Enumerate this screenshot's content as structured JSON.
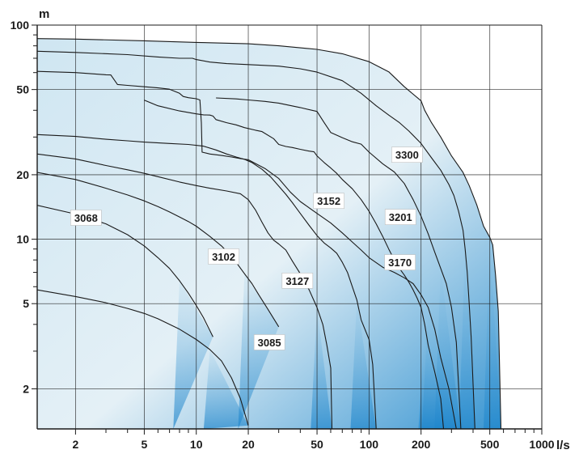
{
  "chart_data": {
    "type": "area",
    "title": "",
    "xlabel": "l/s",
    "ylabel": "m",
    "x_scale": "log",
    "y_scale": "log",
    "xlim": [
      1.2,
      1000
    ],
    "ylim": [
      1.3,
      100
    ],
    "grid": true,
    "legend": "none",
    "x_ticks": [
      {
        "value": 2,
        "label": "2"
      },
      {
        "value": 5,
        "label": "5"
      },
      {
        "value": 10,
        "label": "10"
      },
      {
        "value": 20,
        "label": "20"
      },
      {
        "value": 50,
        "label": "50"
      },
      {
        "value": 100,
        "label": "100"
      },
      {
        "value": 200,
        "label": "200"
      },
      {
        "value": 500,
        "label": "500"
      },
      {
        "value": 1000,
        "label": "1000"
      }
    ],
    "y_ticks": [
      {
        "value": 2,
        "label": "2"
      },
      {
        "value": 5,
        "label": "5"
      },
      {
        "value": 10,
        "label": "10"
      },
      {
        "value": 20,
        "label": "20"
      },
      {
        "value": 50,
        "label": "50"
      },
      {
        "value": 100,
        "label": "100"
      }
    ],
    "colors": {
      "fill_light": "#cfe6f2",
      "fill_dark": "#2e8fd0",
      "curve": "#1a1a1a",
      "grid": "#1a1a1a"
    },
    "series": [
      {
        "name": "3068",
        "label_at": [
          2.3,
          12.6
        ],
        "points": [
          [
            1.2,
            14.4
          ],
          [
            2,
            13.1
          ],
          [
            3,
            11.8
          ],
          [
            4,
            10.5
          ],
          [
            5,
            9.3
          ],
          [
            6,
            8.2
          ],
          [
            7,
            7.3
          ],
          [
            8,
            6.4
          ],
          [
            9,
            5.6
          ],
          [
            10,
            4.9
          ],
          [
            11,
            4.3
          ],
          [
            12.5,
            3.5
          ]
        ]
      },
      {
        "name": "3085",
        "label_at": [
          26.5,
          3.3
        ],
        "points": [
          [
            1.2,
            5.8
          ],
          [
            2,
            5.4
          ],
          [
            3,
            5.05
          ],
          [
            4,
            4.75
          ],
          [
            5,
            4.5
          ],
          [
            6,
            4.25
          ],
          [
            8,
            3.8
          ],
          [
            10,
            3.4
          ],
          [
            12,
            3.05
          ],
          [
            14,
            2.7
          ],
          [
            16,
            2.25
          ],
          [
            18,
            1.8
          ],
          [
            20,
            1.35
          ]
        ]
      },
      {
        "name": "3102",
        "label_at": [
          14.4,
          8.3
        ],
        "points": [
          [
            1.2,
            20.5
          ],
          [
            2,
            19
          ],
          [
            3,
            17.3
          ],
          [
            4,
            16.1
          ],
          [
            5,
            15.1
          ],
          [
            6,
            14.2
          ],
          [
            7,
            13.4
          ],
          [
            8,
            12.7
          ],
          [
            9,
            12.1
          ],
          [
            10,
            11.5
          ],
          [
            12,
            10.3
          ],
          [
            14,
            9.3
          ],
          [
            16,
            8.3
          ],
          [
            17,
            7.8
          ],
          [
            19,
            6.9
          ],
          [
            21,
            6.2
          ],
          [
            23,
            5.5
          ],
          [
            26,
            4.7
          ],
          [
            30,
            3.9
          ]
        ]
      },
      {
        "name": "3127",
        "label_at": [
          38.5,
          6.4
        ],
        "points": [
          [
            1.2,
            25
          ],
          [
            2,
            23.7
          ],
          [
            3,
            22.1
          ],
          [
            4,
            21.1
          ],
          [
            5,
            20.3
          ],
          [
            6,
            19.6
          ],
          [
            8,
            18.5
          ],
          [
            10,
            17.8
          ],
          [
            12,
            17.3
          ],
          [
            15,
            16.8
          ],
          [
            18,
            16.3
          ],
          [
            20,
            15.3
          ],
          [
            22,
            13.7
          ],
          [
            24,
            12
          ],
          [
            26,
            10.7
          ],
          [
            28,
            9.9
          ],
          [
            30,
            9.5
          ],
          [
            33,
            8.9
          ],
          [
            36,
            7.9
          ],
          [
            40,
            6.9
          ],
          [
            45,
            5.8
          ],
          [
            50,
            4.8
          ],
          [
            54,
            4.0
          ],
          [
            57,
            3.2
          ],
          [
            60,
            2.5
          ],
          [
            61,
            1.3
          ]
        ]
      },
      {
        "name": "3152",
        "label_at": [
          58.5,
          15.1
        ],
        "points": [
          [
            1.2,
            30.8
          ],
          [
            2,
            30.2
          ],
          [
            3,
            29.3
          ],
          [
            4,
            28.8
          ],
          [
            5,
            28.4
          ],
          [
            7,
            28
          ],
          [
            9,
            27.7
          ],
          [
            11,
            27.2
          ],
          [
            13,
            26.1
          ],
          [
            15,
            25
          ],
          [
            17,
            24.2
          ],
          [
            19,
            23.6
          ],
          [
            21,
            22.8
          ],
          [
            24,
            21.2
          ],
          [
            27,
            19.5
          ],
          [
            30,
            17.7
          ],
          [
            33,
            16.2
          ],
          [
            36,
            14.8
          ],
          [
            40,
            13.2
          ],
          [
            45,
            11.6
          ],
          [
            50,
            10.4
          ],
          [
            55,
            9.6
          ],
          [
            60,
            9.1
          ],
          [
            65,
            8.6
          ],
          [
            70,
            7.8
          ],
          [
            75,
            7.0
          ],
          [
            80,
            6.0
          ],
          [
            85,
            5.2
          ],
          [
            90,
            4.2
          ],
          [
            100,
            3.4
          ],
          [
            105,
            2.6
          ],
          [
            110,
            1.3
          ]
        ]
      },
      {
        "name": "3170",
        "label_at": [
          151,
          7.8
        ],
        "points": [
          [
            5,
            44.6
          ],
          [
            6,
            42
          ],
          [
            8,
            39.7
          ],
          [
            10,
            38.5
          ],
          [
            11,
            38.1
          ],
          [
            12,
            38
          ],
          [
            12.5,
            37.6
          ],
          [
            13,
            36.2
          ],
          [
            15,
            35
          ],
          [
            17,
            34.2
          ],
          [
            19,
            33.2
          ],
          [
            22,
            32.3
          ],
          [
            24,
            31.8
          ],
          [
            28,
            29.5
          ],
          [
            30,
            27.7
          ],
          [
            33,
            27.1
          ],
          [
            36,
            26.8
          ],
          [
            40,
            26.3
          ],
          [
            45,
            25.8
          ],
          [
            48,
            25.6
          ],
          [
            50,
            24.5
          ],
          [
            55,
            22.8
          ],
          [
            60,
            21.5
          ],
          [
            65,
            20.3
          ],
          [
            70,
            19
          ],
          [
            80,
            17.2
          ],
          [
            90,
            15.3
          ],
          [
            100,
            13.5
          ],
          [
            110,
            11.8
          ],
          [
            120,
            10.3
          ],
          [
            130,
            9.0
          ],
          [
            140,
            8.0
          ],
          [
            150,
            7.3
          ],
          [
            160,
            6.8
          ],
          [
            170,
            6.3
          ],
          [
            180,
            5.8
          ],
          [
            190,
            5.3
          ],
          [
            200,
            4.8
          ],
          [
            210,
            4.0
          ],
          [
            220,
            3.2
          ],
          [
            240,
            2.4
          ],
          [
            260,
            1.8
          ],
          [
            270,
            1.3
          ]
        ]
      },
      {
        "name": "3201",
        "label_at": [
          152,
          12.7
        ],
        "points": [
          [
            1.2,
            60.8
          ],
          [
            2,
            60
          ],
          [
            3,
            58.6
          ],
          [
            3.2,
            58.5
          ],
          [
            3.5,
            52.8
          ],
          [
            4,
            52.3
          ],
          [
            5,
            51.5
          ],
          [
            6,
            50.9
          ],
          [
            7,
            50.2
          ],
          [
            8,
            48
          ],
          [
            8.4,
            46.4
          ],
          [
            9,
            45.8
          ],
          [
            10,
            45.3
          ],
          [
            10.5,
            44.7
          ],
          [
            10.7,
            35
          ],
          [
            10.8,
            25.5
          ],
          [
            12,
            25
          ],
          [
            14,
            24.6
          ],
          [
            16,
            24.2
          ],
          [
            18,
            23.8
          ],
          [
            20,
            23.5
          ],
          [
            25,
            21.4
          ],
          [
            30,
            19.2
          ],
          [
            35,
            16.6
          ],
          [
            40,
            15
          ],
          [
            50,
            13.2
          ],
          [
            60,
            11.9
          ],
          [
            70,
            10.7
          ],
          [
            80,
            9.7
          ],
          [
            90,
            8.9
          ],
          [
            100,
            8.2
          ],
          [
            120,
            7.4
          ],
          [
            140,
            7.0
          ],
          [
            160,
            6.6
          ],
          [
            180,
            6.2
          ],
          [
            200,
            5.5
          ],
          [
            220,
            4.8
          ],
          [
            240,
            3.8
          ],
          [
            260,
            2.8
          ],
          [
            290,
            2.0
          ],
          [
            320,
            1.3
          ]
        ]
      },
      {
        "name": "3300",
        "label_at": [
          166,
          24.8
        ],
        "points": [
          [
            1.2,
            86.5
          ],
          [
            2,
            86
          ],
          [
            5,
            84.5
          ],
          [
            10,
            83
          ],
          [
            20,
            81.8
          ],
          [
            30,
            80
          ],
          [
            50,
            77
          ],
          [
            70,
            73.5
          ],
          [
            100,
            67.5
          ],
          [
            130,
            60.5
          ],
          [
            160,
            51.5
          ],
          [
            200,
            44.3
          ],
          [
            210,
            40
          ],
          [
            230,
            35
          ],
          [
            260,
            30
          ],
          [
            300,
            24.5
          ],
          [
            350,
            20.5
          ],
          [
            380,
            17.8
          ],
          [
            420,
            14.5
          ],
          [
            460,
            11.5
          ],
          [
            500,
            10.2
          ],
          [
            520,
            9.4
          ],
          [
            540,
            6.8
          ],
          [
            560,
            4.6
          ],
          [
            580,
            1.3
          ]
        ]
      },
      {
        "name": "",
        "label_at": null,
        "points": [
          [
            1.2,
            75.5
          ],
          [
            2,
            74.5
          ],
          [
            4,
            72.8
          ],
          [
            6,
            71
          ],
          [
            8,
            70
          ],
          [
            9.5,
            70
          ],
          [
            10,
            69
          ],
          [
            12,
            67.2
          ],
          [
            15,
            66.1
          ],
          [
            20,
            65.4
          ],
          [
            30,
            64.3
          ],
          [
            40,
            62.5
          ],
          [
            50,
            60.3
          ],
          [
            70,
            55
          ],
          [
            90,
            48
          ],
          [
            110,
            42
          ],
          [
            130,
            38
          ],
          [
            150,
            35
          ],
          [
            170,
            32
          ],
          [
            200,
            28
          ],
          [
            230,
            24
          ],
          [
            260,
            21
          ],
          [
            290,
            18
          ],
          [
            310,
            16
          ],
          [
            330,
            13.5
          ],
          [
            350,
            11
          ],
          [
            360,
            9
          ],
          [
            370,
            7
          ],
          [
            380,
            5
          ],
          [
            390,
            3.5
          ],
          [
            410,
            1.3
          ]
        ]
      },
      {
        "name": "",
        "label_at": null,
        "points": [
          [
            13,
            45.7
          ],
          [
            17,
            45.2
          ],
          [
            20,
            44.7
          ],
          [
            25,
            44
          ],
          [
            30,
            43.2
          ],
          [
            40,
            41.2
          ],
          [
            50,
            39.5
          ],
          [
            55,
            35
          ],
          [
            60,
            31.5
          ],
          [
            70,
            29.8
          ],
          [
            80,
            28.5
          ],
          [
            90,
            27.8
          ],
          [
            100,
            25.5
          ],
          [
            120,
            22.5
          ],
          [
            140,
            20.6
          ],
          [
            160,
            18.2
          ],
          [
            180,
            15.3
          ],
          [
            200,
            12.8
          ],
          [
            220,
            10.6
          ],
          [
            240,
            8.7
          ],
          [
            260,
            7.3
          ],
          [
            280,
            6.2
          ],
          [
            300,
            4.8
          ],
          [
            320,
            3.3
          ],
          [
            340,
            1.3
          ]
        ]
      }
    ]
  }
}
